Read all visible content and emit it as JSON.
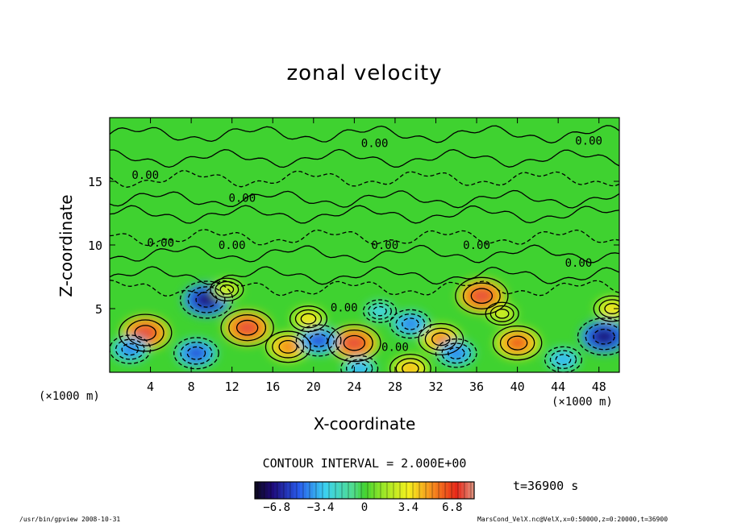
{
  "chart_data": {
    "type": "heatmap",
    "title": "zonal velocity",
    "xlabel": "X-coordinate",
    "ylabel": "Z-coordinate",
    "x_unit_left": "(×1000 m)",
    "x_unit_right": "(×1000 m)",
    "xlim": [
      0,
      50
    ],
    "ylim": [
      0,
      20
    ],
    "x_ticks": [
      "4",
      "8",
      "12",
      "16",
      "20",
      "24",
      "28",
      "32",
      "36",
      "40",
      "44",
      "48"
    ],
    "y_ticks": [
      "5",
      "10",
      "15"
    ],
    "contour_interval_text": "CONTOUR INTERVAL = 2.000E+00",
    "contour_labels": [
      "0.00",
      "0.00",
      "0.00",
      "0.00",
      "0.00",
      "0.00",
      "0.00",
      "0.00",
      "0.00",
      "0.00",
      "0.00"
    ],
    "colorbar": {
      "range": [
        -8.5,
        8.5
      ],
      "tick_labels": [
        "−6.8",
        "−3.4",
        "0",
        "3.4",
        "6.8"
      ],
      "tick_values": [
        -6.8,
        -3.4,
        0,
        3.4,
        6.8
      ]
    },
    "time_label": "t=36900 s",
    "highlights": [
      {
        "x": 9.5,
        "z": 5.7,
        "value": -8
      },
      {
        "x": 3.5,
        "z": 3.1,
        "value": 8
      },
      {
        "x": 13.5,
        "z": 3.5,
        "value": 8
      },
      {
        "x": 24.0,
        "z": 2.3,
        "value": 8
      },
      {
        "x": 36.5,
        "z": 6.0,
        "value": 8
      },
      {
        "x": 40.0,
        "z": 2.3,
        "value": 7
      },
      {
        "x": 17.5,
        "z": 2.0,
        "value": 6
      },
      {
        "x": 32.5,
        "z": 2.6,
        "value": 6
      },
      {
        "x": 2.0,
        "z": 1.8,
        "value": -5
      },
      {
        "x": 8.5,
        "z": 1.5,
        "value": -6
      },
      {
        "x": 20.5,
        "z": 2.5,
        "value": -6
      },
      {
        "x": 29.5,
        "z": 3.8,
        "value": -5
      },
      {
        "x": 34.0,
        "z": 1.5,
        "value": -5
      },
      {
        "x": 48.5,
        "z": 2.8,
        "value": -8
      },
      {
        "x": 44.5,
        "z": 1.0,
        "value": -4
      },
      {
        "x": 24.5,
        "z": 0.3,
        "value": -4
      },
      {
        "x": 29.5,
        "z": 0.3,
        "value": 5
      },
      {
        "x": 19.5,
        "z": 4.2,
        "value": 4
      },
      {
        "x": 11.5,
        "z": 6.5,
        "value": 3
      },
      {
        "x": 38.5,
        "z": 4.6,
        "value": 3
      },
      {
        "x": 49.3,
        "z": 5.0,
        "value": 4
      },
      {
        "x": 26.5,
        "z": 4.8,
        "value": -3
      }
    ]
  },
  "footer": {
    "left": "/usr/bin/gpview   2008-10-31",
    "right": "MarsCond_VelX.nc@VelX,x=0:50000,z=0:20000,t=36900"
  }
}
